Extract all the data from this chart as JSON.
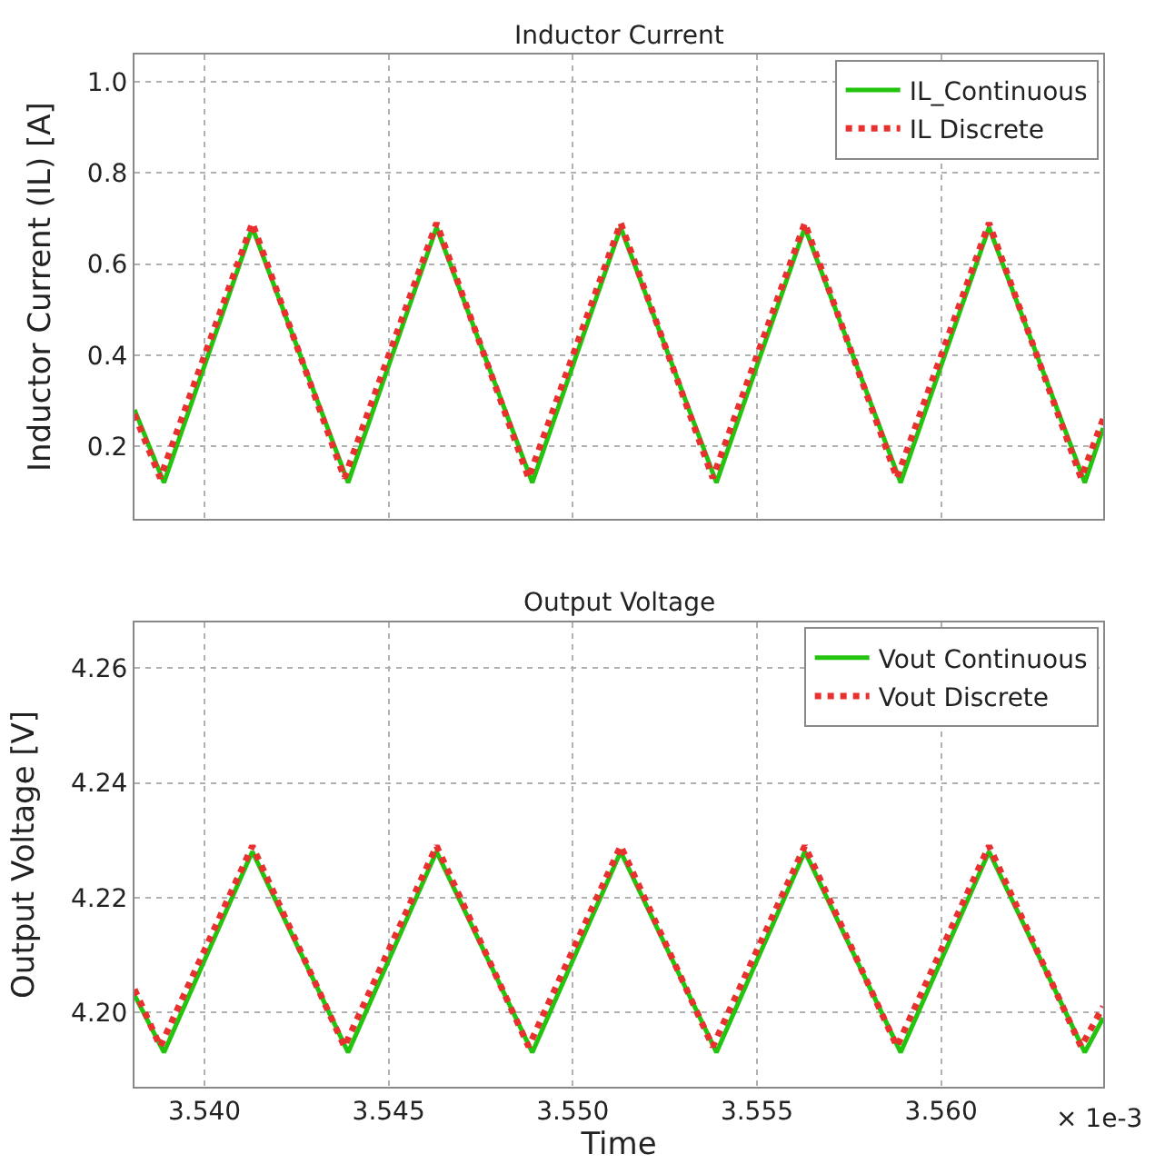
{
  "chart_data": [
    {
      "type": "line",
      "title": "Inductor Current",
      "ylabel": "Inductor Current (IL) [A]",
      "xlim": [
        3.5381,
        3.5644
      ],
      "xticks": [
        {
          "value": 3.54,
          "label": null
        },
        {
          "value": 3.545,
          "label": null
        },
        {
          "value": 3.55,
          "label": null
        },
        {
          "value": 3.555,
          "label": null
        },
        {
          "value": 3.56,
          "label": null
        }
      ],
      "ylim": [
        0.04,
        1.06
      ],
      "yticks": [
        {
          "value": 0.2,
          "label": "0.2"
        },
        {
          "value": 0.4,
          "label": "0.4"
        },
        {
          "value": 0.6,
          "label": "0.6"
        },
        {
          "value": 0.8,
          "label": "0.8"
        },
        {
          "value": 1.0,
          "label": "1.0"
        }
      ],
      "tick_labels": "y",
      "grid": true,
      "legend": "top right",
      "series": [
        {
          "name": "IL_Continuous",
          "color": "#22c40e",
          "line_style": "solid",
          "x": [
            3.5381,
            3.5389,
            3.5413,
            3.5439,
            3.5463,
            3.5489,
            3.5513,
            3.5539,
            3.5563,
            3.5589,
            3.5613,
            3.5639,
            3.5644
          ],
          "values": [
            0.28,
            0.12,
            0.68,
            0.12,
            0.68,
            0.12,
            0.68,
            0.12,
            0.68,
            0.12,
            0.68,
            0.12,
            0.24
          ]
        },
        {
          "name": "IL Discrete",
          "color": "#e8302e",
          "line_style": "dotted",
          "x": [
            3.5381,
            3.5388,
            3.5413,
            3.5438,
            3.5463,
            3.5488,
            3.5513,
            3.5538,
            3.5563,
            3.5588,
            3.5613,
            3.5638,
            3.5644
          ],
          "values": [
            0.27,
            0.13,
            0.69,
            0.13,
            0.69,
            0.13,
            0.69,
            0.13,
            0.69,
            0.13,
            0.69,
            0.13,
            0.26
          ]
        }
      ]
    },
    {
      "type": "line",
      "title": "Output Voltage",
      "xlabel": "Time",
      "ylabel": "Output Voltage [V]",
      "annotations": [
        "× 1e-3"
      ],
      "xlim": [
        3.5381,
        3.5644
      ],
      "xticks": [
        {
          "value": 3.54,
          "label": "3.540"
        },
        {
          "value": 3.545,
          "label": "3.545"
        },
        {
          "value": 3.55,
          "label": "3.550"
        },
        {
          "value": 3.555,
          "label": "3.555"
        },
        {
          "value": 3.56,
          "label": "3.560"
        }
      ],
      "ylim": [
        4.187,
        4.268
      ],
      "yticks": [
        {
          "value": 4.2,
          "label": "4.20"
        },
        {
          "value": 4.22,
          "label": "4.22"
        },
        {
          "value": 4.24,
          "label": "4.24"
        },
        {
          "value": 4.26,
          "label": "4.26"
        }
      ],
      "grid": true,
      "legend": "top right",
      "series": [
        {
          "name": "Vout Continuous",
          "color": "#22c40e",
          "line_style": "solid",
          "x": [
            3.5381,
            3.5389,
            3.5413,
            3.5439,
            3.5463,
            3.5489,
            3.5513,
            3.5539,
            3.5563,
            3.5589,
            3.5613,
            3.5639,
            3.5644
          ],
          "values": [
            4.203,
            4.193,
            4.228,
            4.193,
            4.228,
            4.193,
            4.228,
            4.193,
            4.228,
            4.193,
            4.228,
            4.193,
            4.199
          ]
        },
        {
          "name": "Vout Discrete",
          "color": "#e8302e",
          "line_style": "dotted",
          "x": [
            3.5381,
            3.5388,
            3.5413,
            3.5438,
            3.5463,
            3.5488,
            3.5513,
            3.5538,
            3.5563,
            3.5588,
            3.5613,
            3.5638,
            3.5644
          ],
          "values": [
            4.204,
            4.194,
            4.229,
            4.194,
            4.229,
            4.194,
            4.229,
            4.194,
            4.229,
            4.194,
            4.229,
            4.194,
            4.201
          ]
        }
      ]
    }
  ]
}
